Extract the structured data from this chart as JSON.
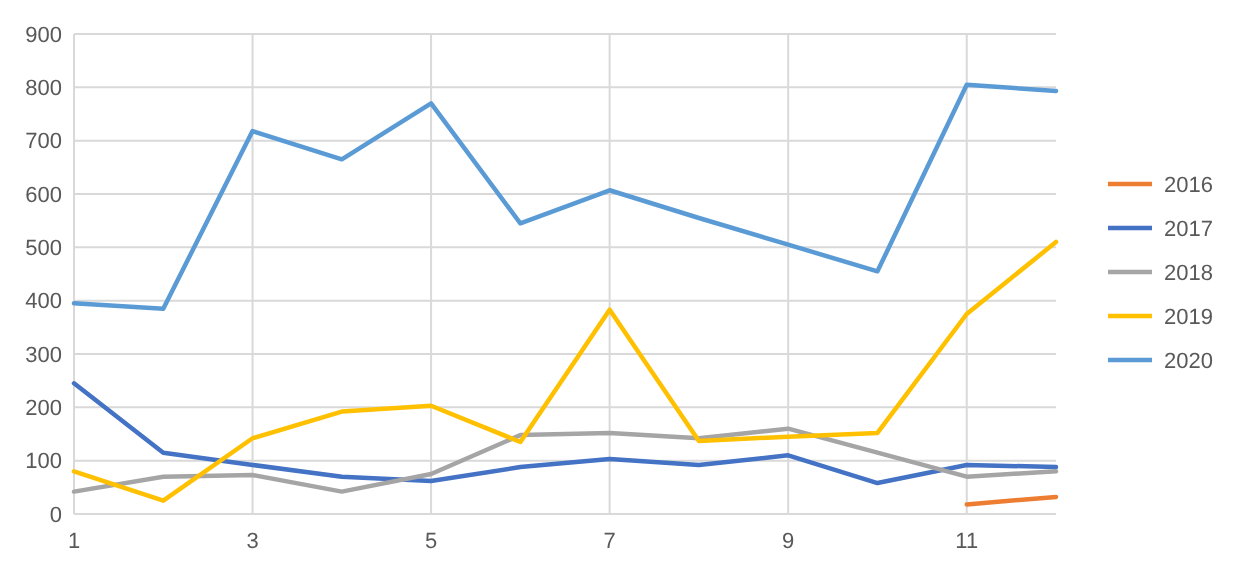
{
  "chart_data": {
    "type": "line",
    "x": [
      1,
      2,
      3,
      4,
      5,
      6,
      7,
      8,
      9,
      10,
      11,
      12
    ],
    "xlim": [
      1,
      12
    ],
    "xticks": [
      1,
      3,
      5,
      7,
      9,
      11
    ],
    "ylim": [
      0,
      900
    ],
    "yticks": [
      0,
      100,
      200,
      300,
      400,
      500,
      600,
      700,
      800,
      900
    ],
    "grid": true,
    "legend": "right",
    "series": [
      {
        "name": "2016",
        "color": "#ed7d31",
        "x": [
          11,
          12
        ],
        "values": [
          18,
          32
        ]
      },
      {
        "name": "2017",
        "color": "#4472c4",
        "values": [
          245,
          115,
          92,
          70,
          62,
          88,
          103,
          92,
          110,
          58,
          92,
          88
        ]
      },
      {
        "name": "2018",
        "color": "#a5a5a5",
        "values": [
          42,
          70,
          73,
          42,
          75,
          148,
          152,
          142,
          160,
          115,
          70,
          80
        ]
      },
      {
        "name": "2019",
        "color": "#ffc000",
        "values": [
          80,
          25,
          142,
          192,
          203,
          135,
          383,
          137,
          145,
          152,
          375,
          510
        ]
      },
      {
        "name": "2020",
        "color": "#5b9bd5",
        "values": [
          395,
          385,
          718,
          665,
          770,
          545,
          607,
          555,
          505,
          455,
          805,
          793
        ]
      }
    ]
  }
}
